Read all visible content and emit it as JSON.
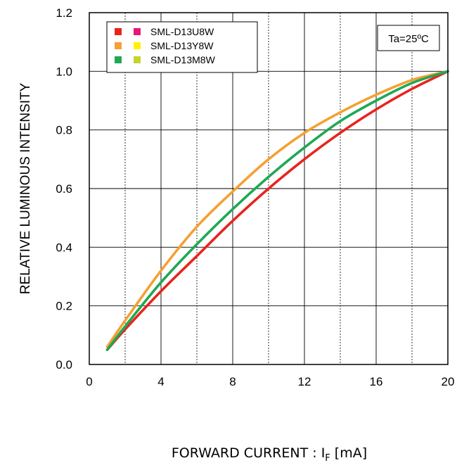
{
  "chart_data": {
    "type": "line",
    "title": "",
    "xlabel": "FORWARD CURRENT : I",
    "xlabel_sub": "F",
    "xlabel_unit": "[mA]",
    "ylabel": "RELATIVE LUMINOUS INTENSITY",
    "xlim": [
      0,
      20
    ],
    "ylim": [
      0.0,
      1.2
    ],
    "x_ticks": [
      "0",
      "4",
      "8",
      "12",
      "16",
      "20"
    ],
    "y_ticks": [
      "0.0",
      "0.2",
      "0.4",
      "0.6",
      "0.8",
      "1.0",
      "1.2"
    ],
    "grid": true,
    "legend_position": "top-left",
    "annotation": "Ta=25ºC",
    "series": [
      {
        "name": "SML-D13U8W",
        "color": "#e8241c",
        "marker_colors": [
          "#e8241c",
          "#e6167a"
        ],
        "x": [
          1,
          2,
          4,
          6,
          8,
          10,
          12,
          14,
          16,
          18,
          20
        ],
        "y": [
          0.05,
          0.12,
          0.25,
          0.37,
          0.49,
          0.6,
          0.7,
          0.79,
          0.87,
          0.94,
          1.0
        ]
      },
      {
        "name": "SML-D13Y8W",
        "color": "#f5a032",
        "marker_colors": [
          "#f5a032",
          "#fff200"
        ],
        "x": [
          1,
          2,
          4,
          6,
          8,
          10,
          12,
          14,
          16,
          18,
          20
        ],
        "y": [
          0.06,
          0.15,
          0.32,
          0.47,
          0.59,
          0.7,
          0.79,
          0.86,
          0.92,
          0.97,
          1.0
        ]
      },
      {
        "name": "SML-D13M8W",
        "color": "#1fa855",
        "marker_colors": [
          "#1fa855",
          "#c3d52c"
        ],
        "x": [
          1,
          2,
          4,
          6,
          8,
          10,
          12,
          14,
          16,
          18,
          20
        ],
        "y": [
          0.05,
          0.13,
          0.28,
          0.41,
          0.53,
          0.64,
          0.74,
          0.83,
          0.9,
          0.96,
          1.0
        ]
      }
    ]
  }
}
